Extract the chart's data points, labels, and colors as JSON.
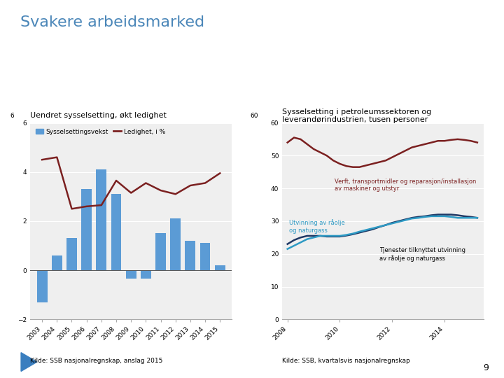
{
  "title": "Svakere arbeidsmarked",
  "title_color": "#4a86b8",
  "background_color": "#ffffff",
  "left_subtitle": "Uendret sysselsetting, økt ledighet",
  "left_source": "Kilde: SSB nasjonalregnskap, anslag 2015",
  "left_years": [
    2003,
    2004,
    2005,
    2006,
    2007,
    2008,
    2009,
    2010,
    2011,
    2012,
    2013,
    2014,
    2015
  ],
  "left_bar_values": [
    -1.3,
    0.6,
    1.3,
    3.3,
    4.1,
    3.1,
    -0.35,
    -0.35,
    1.5,
    2.1,
    1.2,
    1.1,
    0.2
  ],
  "left_bar_color": "#5b9bd5",
  "left_line_values": [
    4.5,
    4.6,
    2.5,
    2.6,
    2.65,
    3.65,
    3.15,
    3.55,
    3.25,
    3.1,
    3.45,
    3.55,
    3.95
  ],
  "left_line_color": "#7b2020",
  "left_ylim": [
    -2,
    6
  ],
  "left_yticks": [
    -2,
    0,
    2,
    4,
    6
  ],
  "left_legend_bar": "Sysselsettingsvekst",
  "left_legend_line": "Ledighet, i %",
  "right_subtitle1": "Sysselsetting i petroleumssektoren og",
  "right_subtitle2": "leverandørindustrien, tusen personer",
  "right_source": "Kilde: SSB, kvartalsvis nasjonalregnskap",
  "right_years": [
    2008.0,
    2008.25,
    2008.5,
    2008.75,
    2009.0,
    2009.25,
    2009.5,
    2009.75,
    2010.0,
    2010.25,
    2010.5,
    2010.75,
    2011.0,
    2011.25,
    2011.5,
    2011.75,
    2012.0,
    2012.25,
    2012.5,
    2012.75,
    2013.0,
    2013.25,
    2013.5,
    2013.75,
    2014.0,
    2014.25,
    2014.5,
    2014.75,
    2015.0,
    2015.25
  ],
  "right_line1": [
    54.0,
    55.5,
    55.0,
    53.5,
    52.0,
    51.0,
    50.0,
    48.5,
    47.5,
    46.8,
    46.5,
    46.5,
    47.0,
    47.5,
    48.0,
    48.5,
    49.5,
    50.5,
    51.5,
    52.5,
    53.0,
    53.5,
    54.0,
    54.5,
    54.5,
    54.8,
    55.0,
    54.8,
    54.5,
    54.0
  ],
  "right_line1_color": "#7b2020",
  "right_line1_label": "Verft, transportmidler og reparasjon/installasjon\nav maskiner og utstyr",
  "right_line2": [
    23.0,
    24.2,
    25.0,
    25.5,
    25.5,
    25.5,
    25.3,
    25.3,
    25.3,
    25.6,
    26.0,
    26.5,
    27.0,
    27.5,
    28.2,
    28.8,
    29.5,
    30.0,
    30.5,
    31.0,
    31.3,
    31.5,
    31.8,
    32.0,
    32.0,
    32.0,
    31.8,
    31.5,
    31.3,
    31.0
  ],
  "right_line2_color": "#1f3864",
  "right_line2_label": "Utvinning av råolje\nog naturgass",
  "right_line3": [
    21.5,
    22.5,
    23.5,
    24.5,
    25.0,
    25.5,
    25.5,
    25.5,
    25.5,
    25.8,
    26.2,
    26.8,
    27.3,
    27.8,
    28.3,
    28.8,
    29.3,
    29.8,
    30.3,
    30.8,
    31.0,
    31.3,
    31.5,
    31.5,
    31.5,
    31.3,
    31.0,
    31.0,
    31.0,
    31.0
  ],
  "right_line3_color": "#2e9ac4",
  "right_line3_label": "Tjenester tilknyttet utvinning\nav råolje og naturgass",
  "right_ylim": [
    0,
    60
  ],
  "right_yticks": [
    0,
    10,
    20,
    30,
    40,
    50,
    60
  ],
  "right_xticks": [
    2008,
    2010,
    2012,
    2014
  ],
  "right_xtick_labels": [
    "2008",
    "2010",
    "2012",
    "2014"
  ],
  "page_number": "9"
}
